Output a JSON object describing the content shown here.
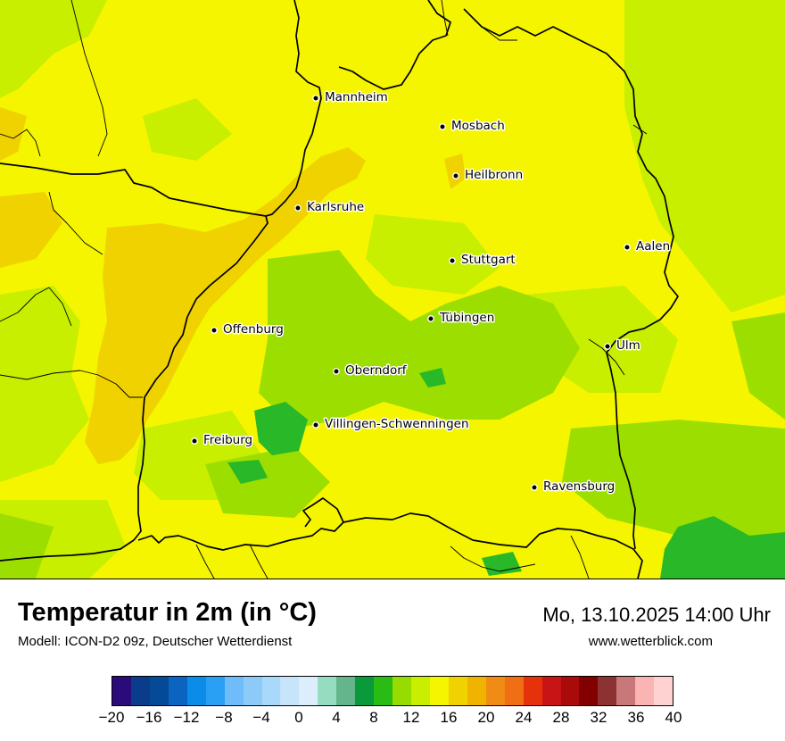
{
  "title": "Temperatur in 2m (in °C)",
  "model_line": "Modell: ICON-D2 09z, Deutscher Wetterdienst",
  "datetime": "Mo, 13.10.2025 14:00 Uhr",
  "website": "www.wetterblick.com",
  "colors": {
    "field_base": "#f5f500",
    "field_light_green": "#c8ee00",
    "field_green": "#9cde00",
    "field_dark_green": "#28b828",
    "field_orange": "#f0d200",
    "border": "#000000"
  },
  "cities": [
    {
      "name": "Mannheim",
      "icon": "city-dot-icon"
    },
    {
      "name": "Mosbach",
      "icon": "city-dot-icon"
    },
    {
      "name": "Heilbronn",
      "icon": "city-dot-icon"
    },
    {
      "name": "Karlsruhe",
      "icon": "city-dot-icon"
    },
    {
      "name": "Aalen",
      "icon": "city-dot-icon"
    },
    {
      "name": "Stuttgart",
      "icon": "city-dot-icon"
    },
    {
      "name": "Tübingen",
      "icon": "city-dot-icon"
    },
    {
      "name": "Offenburg",
      "icon": "city-dot-icon"
    },
    {
      "name": "Ulm",
      "icon": "city-dot-icon"
    },
    {
      "name": "Oberndorf",
      "icon": "city-dot-icon"
    },
    {
      "name": "Villingen-Schwenningen",
      "icon": "city-dot-icon"
    },
    {
      "name": "Freiburg",
      "icon": "city-dot-icon"
    },
    {
      "name": "Ravensburg",
      "icon": "city-dot-icon"
    }
  ],
  "legend": {
    "unit": "°C",
    "min": -20,
    "max": 40,
    "step": 2,
    "colors": [
      "#2b0a7a",
      "#0b3c8c",
      "#054a96",
      "#0a64c0",
      "#0a8ce8",
      "#2aa0f5",
      "#6ebcfa",
      "#8ccaf8",
      "#a8d8fa",
      "#c6e4fa",
      "#dceefc",
      "#96dcc0",
      "#64b48c",
      "#0a9a3c",
      "#28bc14",
      "#96dc00",
      "#c8ee00",
      "#f5f500",
      "#f0d200",
      "#f0b400",
      "#f08c14",
      "#f06e14",
      "#e6320a",
      "#c81414",
      "#aa0a0a",
      "#820000",
      "#8c3232",
      "#c87878",
      "#fab4b4",
      "#ffd2d2"
    ],
    "tick_labels": [
      "−20",
      "−16",
      "−12",
      "−8",
      "−4",
      "0",
      "4",
      "8",
      "12",
      "16",
      "20",
      "24",
      "28",
      "32",
      "36",
      "40"
    ]
  }
}
